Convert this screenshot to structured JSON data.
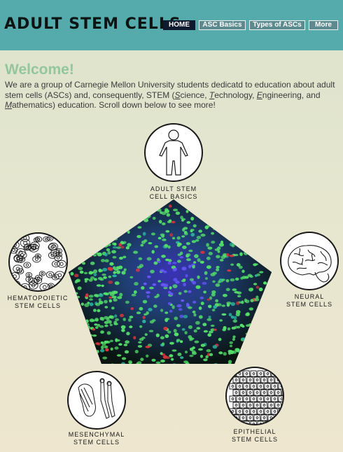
{
  "header": {
    "title": "ADULT STEM CELLS",
    "nav": [
      "HOME",
      "ASC Basics",
      "Types of ASCs",
      "More"
    ]
  },
  "welcome": {
    "heading": "Welcome!",
    "intro_1": "We are a group of Carnegie Mellon University students dedicatd to education about adult stem cells (ASCs) and, consequently, STEM (",
    "s_letter": "S",
    "science_rest": "cience, ",
    "t_letter": "T",
    "technology_rest": "echnology, ",
    "e_letter": "E",
    "engineering_rest": "ngineering, and ",
    "m_letter": "M",
    "mathematics_rest": "athematics) education. Scroll down below to see more!"
  },
  "cells": {
    "basics": [
      "ADULT STEM",
      "CELL BASICS"
    ],
    "hematopoietic": [
      "HEMATOPOIETIC",
      "STEM CELLS"
    ],
    "neural": [
      "NEURAL",
      "STEM CELLS"
    ],
    "mesenchymal": [
      "MESENCHYMAL",
      "STEM CELLS"
    ],
    "epithelial": [
      "EPITHELIAL",
      "STEM CELLS"
    ]
  },
  "colors": {
    "header_bg": "#55abab",
    "nav_active": "#0e1a2e",
    "nav_bg": "#5c8a8f",
    "welcome_green": "#93c79b"
  }
}
